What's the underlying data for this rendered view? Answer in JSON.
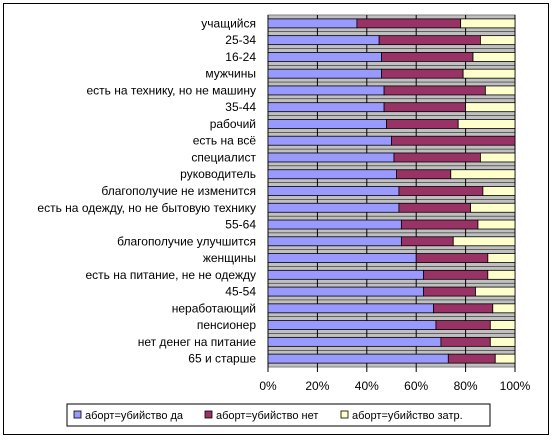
{
  "chart_data": {
    "type": "bar",
    "orientation": "horizontal",
    "stacked": "percent",
    "title": "",
    "xlabel": "",
    "ylabel": "",
    "xlim": [
      0,
      100
    ],
    "x_ticks": [
      "0%",
      "20%",
      "40%",
      "60%",
      "80%",
      "100%"
    ],
    "grid": true,
    "legend_position": "bottom",
    "categories": [
      "учащийся",
      "25-34",
      "16-24",
      "мужчины",
      "есть на технику, но не машину",
      "35-44",
      "рабочий",
      "есть на всё",
      "специалист",
      "руководитель",
      "благополучие не изменится",
      "есть на одежду, но не бытовую технику",
      "55-64",
      "благополучие улучшится",
      "женщины",
      "есть на питание, не не одежду",
      "45-54",
      "неработающий",
      "пенсионер",
      "нет денег на питание",
      "65 и старше"
    ],
    "series": [
      {
        "name": "аборт=убийство да",
        "color": "#9999ff",
        "values": [
          36,
          45,
          46,
          46,
          47,
          47,
          48,
          50,
          51,
          52,
          53,
          53,
          54,
          54,
          60,
          63,
          63,
          67,
          68,
          70,
          73
        ]
      },
      {
        "name": "аборт=убийство нет",
        "color": "#993366",
        "values": [
          42,
          41,
          37,
          33,
          41,
          33,
          29,
          50,
          35,
          22,
          34,
          29,
          31,
          21,
          29,
          26,
          21,
          24,
          22,
          20,
          19
        ]
      },
      {
        "name": "аборт=убийство затр.",
        "color": "#ffffcc",
        "values": [
          22,
          14,
          17,
          21,
          12,
          20,
          23,
          0,
          14,
          26,
          13,
          18,
          15,
          25,
          11,
          11,
          16,
          9,
          10,
          10,
          8
        ]
      }
    ]
  }
}
